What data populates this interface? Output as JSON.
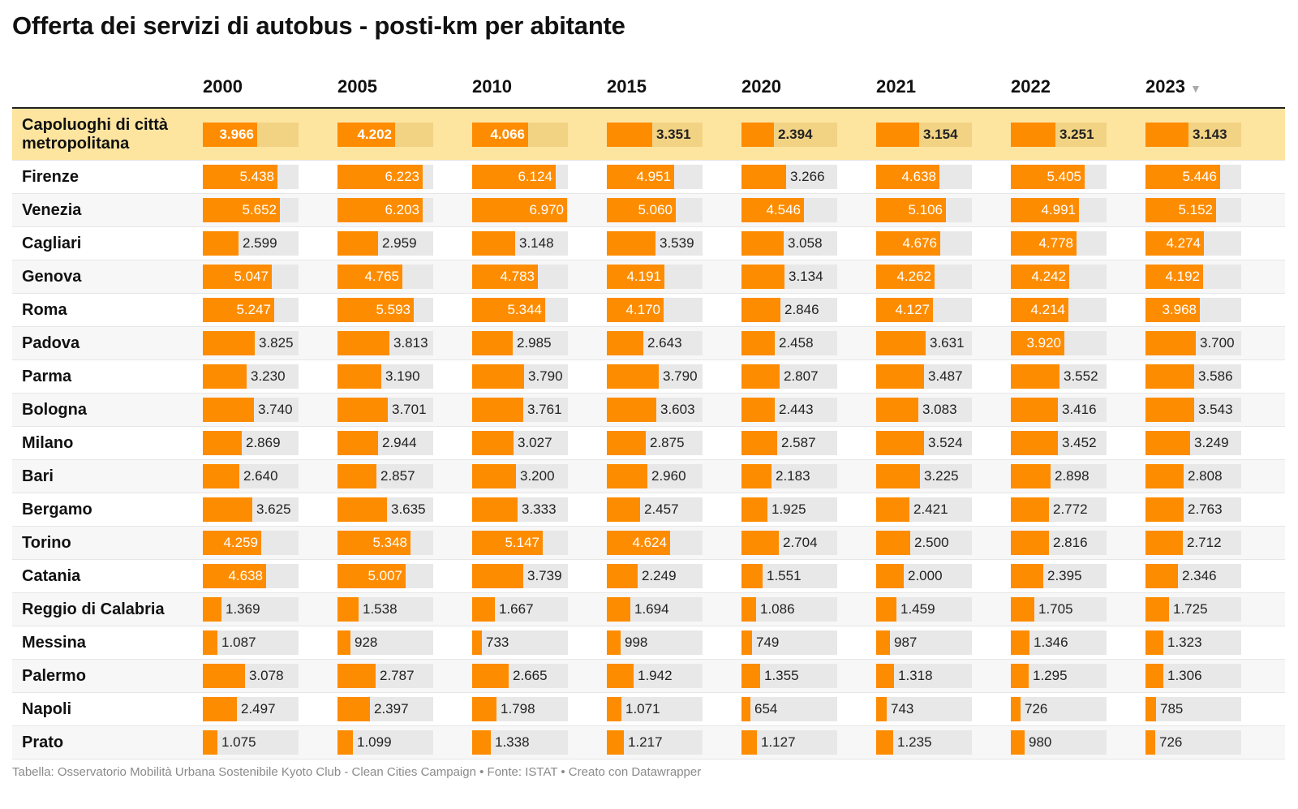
{
  "title": "Offerta dei servizi di autobus - posti-km per abitante",
  "source": "Tabella: Osservatorio Mobilità Urbana Sostenibile Kyoto Club - Clean Cities Campaign • Fonte: ISTAT • Creato con Datawrapper",
  "sort_icon": "▼",
  "colors": {
    "bar": "#fe8c00",
    "track": "#e8e8e8",
    "highlight": "#fde5a0",
    "highlight_track": "#f2d384"
  },
  "chart_data": {
    "type": "table",
    "columns": [
      "2000",
      "2005",
      "2010",
      "2015",
      "2020",
      "2021",
      "2022",
      "2023"
    ],
    "sorted_column": "2023",
    "sort_order": "descending",
    "rows": [
      {
        "name": "Capoluoghi di città metropolitana",
        "highlight": true,
        "values": [
          3966,
          4202,
          4066,
          3351,
          2394,
          3154,
          3251,
          3143
        ],
        "labels": [
          "3.966",
          "4.202",
          "4.066",
          "3.351",
          "2.394",
          "3.154",
          "3.251",
          "3.143"
        ]
      },
      {
        "name": "Firenze",
        "values": [
          5438,
          6223,
          6124,
          4951,
          3266,
          4638,
          5405,
          5446
        ],
        "labels": [
          "5.438",
          "6.223",
          "6.124",
          "4.951",
          "3.266",
          "4.638",
          "5.405",
          "5.446"
        ]
      },
      {
        "name": "Venezia",
        "values": [
          5652,
          6203,
          6970,
          5060,
          4546,
          5106,
          4991,
          5152
        ],
        "labels": [
          "5.652",
          "6.203",
          "6.970",
          "5.060",
          "4.546",
          "5.106",
          "4.991",
          "5.152"
        ]
      },
      {
        "name": "Cagliari",
        "values": [
          2599,
          2959,
          3148,
          3539,
          3058,
          4676,
          4778,
          4274
        ],
        "labels": [
          "2.599",
          "2.959",
          "3.148",
          "3.539",
          "3.058",
          "4.676",
          "4.778",
          "4.274"
        ]
      },
      {
        "name": "Genova",
        "values": [
          5047,
          4765,
          4783,
          4191,
          3134,
          4262,
          4242,
          4192
        ],
        "labels": [
          "5.047",
          "4.765",
          "4.783",
          "4.191",
          "3.134",
          "4.262",
          "4.242",
          "4.192"
        ]
      },
      {
        "name": "Roma",
        "values": [
          5247,
          5593,
          5344,
          4170,
          2846,
          4127,
          4214,
          3968
        ],
        "labels": [
          "5.247",
          "5.593",
          "5.344",
          "4.170",
          "2.846",
          "4.127",
          "4.214",
          "3.968"
        ]
      },
      {
        "name": "Padova",
        "values": [
          3825,
          3813,
          2985,
          2643,
          2458,
          3631,
          3920,
          3700
        ],
        "labels": [
          "3.825",
          "3.813",
          "2.985",
          "2.643",
          "2.458",
          "3.631",
          "3.920",
          "3.700"
        ]
      },
      {
        "name": "Parma",
        "values": [
          3230,
          3190,
          3790,
          3790,
          2807,
          3487,
          3552,
          3586
        ],
        "labels": [
          "3.230",
          "3.190",
          "3.790",
          "3.790",
          "2.807",
          "3.487",
          "3.552",
          "3.586"
        ]
      },
      {
        "name": "Bologna",
        "values": [
          3740,
          3701,
          3761,
          3603,
          2443,
          3083,
          3416,
          3543
        ],
        "labels": [
          "3.740",
          "3.701",
          "3.761",
          "3.603",
          "2.443",
          "3.083",
          "3.416",
          "3.543"
        ]
      },
      {
        "name": "Milano",
        "values": [
          2869,
          2944,
          3027,
          2875,
          2587,
          3524,
          3452,
          3249
        ],
        "labels": [
          "2.869",
          "2.944",
          "3.027",
          "2.875",
          "2.587",
          "3.524",
          "3.452",
          "3.249"
        ]
      },
      {
        "name": "Bari",
        "values": [
          2640,
          2857,
          3200,
          2960,
          2183,
          3225,
          2898,
          2808
        ],
        "labels": [
          "2.640",
          "2.857",
          "3.200",
          "2.960",
          "2.183",
          "3.225",
          "2.898",
          "2.808"
        ]
      },
      {
        "name": "Bergamo",
        "values": [
          3625,
          3635,
          3333,
          2457,
          1925,
          2421,
          2772,
          2763
        ],
        "labels": [
          "3.625",
          "3.635",
          "3.333",
          "2.457",
          "1.925",
          "2.421",
          "2.772",
          "2.763"
        ]
      },
      {
        "name": "Torino",
        "values": [
          4259,
          5348,
          5147,
          4624,
          2704,
          2500,
          2816,
          2712
        ],
        "labels": [
          "4.259",
          "5.348",
          "5.147",
          "4.624",
          "2.704",
          "2.500",
          "2.816",
          "2.712"
        ]
      },
      {
        "name": "Catania",
        "values": [
          4638,
          5007,
          3739,
          2249,
          1551,
          2000,
          2395,
          2346
        ],
        "labels": [
          "4.638",
          "5.007",
          "3.739",
          "2.249",
          "1.551",
          "2.000",
          "2.395",
          "2.346"
        ]
      },
      {
        "name": "Reggio di Calabria",
        "values": [
          1369,
          1538,
          1667,
          1694,
          1086,
          1459,
          1705,
          1725
        ],
        "labels": [
          "1.369",
          "1.538",
          "1.667",
          "1.694",
          "1.086",
          "1.459",
          "1.705",
          "1.725"
        ]
      },
      {
        "name": "Messina",
        "values": [
          1087,
          928,
          733,
          998,
          749,
          987,
          1346,
          1323
        ],
        "labels": [
          "1.087",
          "928",
          "733",
          "998",
          "749",
          "987",
          "1.346",
          "1.323"
        ]
      },
      {
        "name": "Palermo",
        "values": [
          3078,
          2787,
          2665,
          1942,
          1355,
          1318,
          1295,
          1306
        ],
        "labels": [
          "3.078",
          "2.787",
          "2.665",
          "1.942",
          "1.355",
          "1.318",
          "1.295",
          "1.306"
        ]
      },
      {
        "name": "Napoli",
        "values": [
          2497,
          2397,
          1798,
          1071,
          654,
          743,
          726,
          785
        ],
        "labels": [
          "2.497",
          "2.397",
          "1.798",
          "1.071",
          "654",
          "743",
          "726",
          "785"
        ]
      },
      {
        "name": "Prato",
        "values": [
          1075,
          1099,
          1338,
          1217,
          1127,
          1235,
          980,
          726
        ],
        "labels": [
          "1.075",
          "1.099",
          "1.338",
          "1.217",
          "1.127",
          "1.235",
          "980",
          "726"
        ]
      }
    ]
  }
}
